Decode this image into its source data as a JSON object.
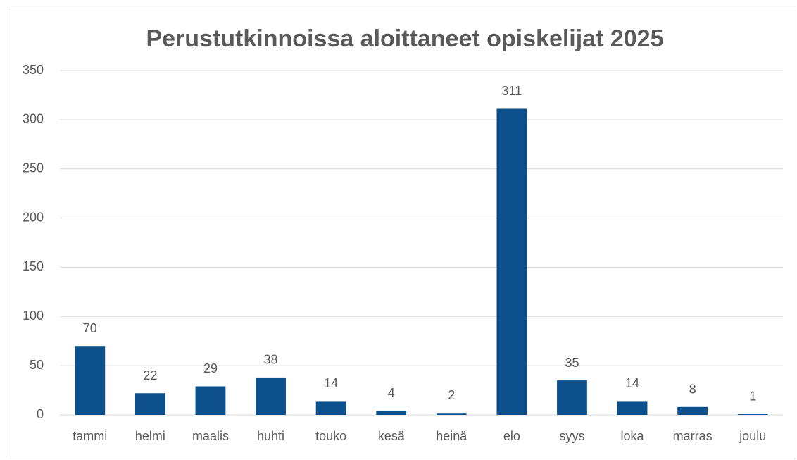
{
  "chart_data": {
    "type": "bar",
    "title": "Perustutkinnoissa aloittaneet opiskelijat 2025",
    "categories": [
      "tammi",
      "helmi",
      "maalis",
      "huhti",
      "touko",
      "kesä",
      "heinä",
      "elo",
      "syys",
      "loka",
      "marras",
      "joulu"
    ],
    "values": [
      70,
      22,
      29,
      38,
      14,
      4,
      2,
      311,
      35,
      14,
      8,
      1
    ],
    "color": "#0b4f8c",
    "ylim": [
      0,
      350
    ],
    "yticks": [
      0,
      50,
      100,
      150,
      200,
      250,
      300,
      350
    ],
    "grid": true
  }
}
